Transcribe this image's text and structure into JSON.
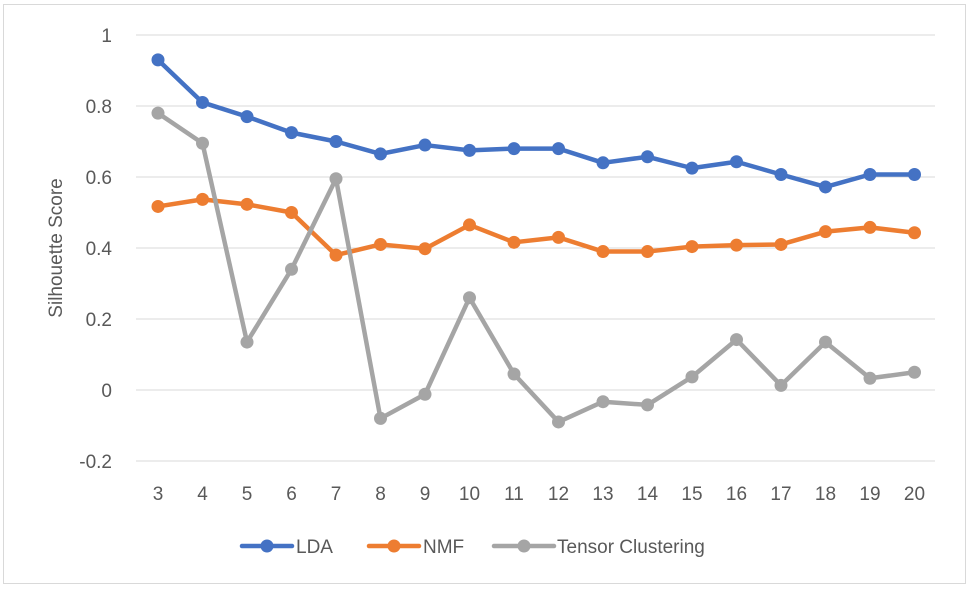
{
  "chart_data": {
    "type": "line",
    "title": "",
    "xlabel": "",
    "ylabel": "Silhouette Score",
    "x": [
      3,
      4,
      5,
      6,
      7,
      8,
      9,
      10,
      11,
      12,
      13,
      14,
      15,
      16,
      17,
      18,
      19,
      20
    ],
    "ylim": [
      -0.2,
      1
    ],
    "yticks": [
      -0.2,
      0,
      0.2,
      0.4,
      0.6,
      0.8,
      1
    ],
    "ytick_labels": [
      "-0.2",
      "0",
      "0.2",
      "0.4",
      "0.6",
      "0.8",
      "1"
    ],
    "grid": true,
    "legend_position": "bottom",
    "series": [
      {
        "name": "LDA",
        "color": "#4472c4",
        "values": [
          0.93,
          0.81,
          0.77,
          0.725,
          0.7,
          0.665,
          0.69,
          0.675,
          0.68,
          0.68,
          0.64,
          0.657,
          0.625,
          0.643,
          0.607,
          0.572,
          0.607,
          0.607
        ]
      },
      {
        "name": "NMF",
        "color": "#ed7d31",
        "values": [
          0.517,
          0.537,
          0.523,
          0.5,
          0.38,
          0.41,
          0.398,
          0.465,
          0.416,
          0.43,
          0.39,
          0.39,
          0.404,
          0.408,
          0.41,
          0.446,
          0.458,
          0.443
        ]
      },
      {
        "name": "Tensor Clustering",
        "color": "#a5a5a5",
        "values": [
          0.78,
          0.695,
          0.135,
          0.34,
          0.595,
          -0.08,
          -0.012,
          0.26,
          0.045,
          -0.09,
          -0.033,
          -0.042,
          0.037,
          0.142,
          0.013,
          0.135,
          0.033,
          0.05
        ]
      }
    ]
  }
}
